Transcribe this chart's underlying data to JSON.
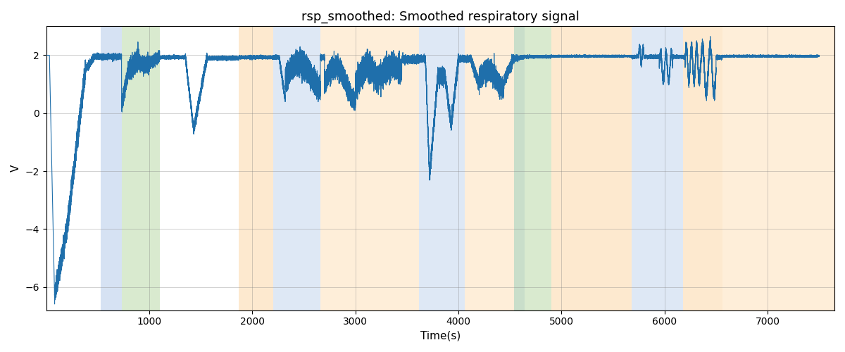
{
  "title": "rsp_smoothed: Smoothed respiratory signal",
  "xlabel": "Time(s)",
  "ylabel": "V",
  "xlim": [
    0,
    7650
  ],
  "ylim": [
    -6.8,
    3.0
  ],
  "yticks": [
    -6,
    -4,
    -2,
    0,
    2
  ],
  "xticks": [
    1000,
    2000,
    3000,
    4000,
    5000,
    6000,
    7000
  ],
  "background_color": "#ffffff",
  "line_color": "#1f6fab",
  "line_width": 0.8,
  "title_fontsize": 13,
  "label_fontsize": 11,
  "bands": [
    {
      "xmin": 530,
      "xmax": 730,
      "color": "#aec6e8",
      "alpha": 0.5
    },
    {
      "xmin": 730,
      "xmax": 1100,
      "color": "#b5d6a0",
      "alpha": 0.5
    },
    {
      "xmin": 1870,
      "xmax": 2200,
      "color": "#fdd5a0",
      "alpha": 0.5
    },
    {
      "xmin": 2200,
      "xmax": 2660,
      "color": "#aec6e8",
      "alpha": 0.4
    },
    {
      "xmin": 2660,
      "xmax": 3620,
      "color": "#fdd5a0",
      "alpha": 0.4
    },
    {
      "xmin": 3620,
      "xmax": 4060,
      "color": "#aec6e8",
      "alpha": 0.4
    },
    {
      "xmin": 4060,
      "xmax": 4540,
      "color": "#fdd5a0",
      "alpha": 0.4
    },
    {
      "xmin": 4540,
      "xmax": 4640,
      "color": "#aec6e8",
      "alpha": 0.4
    },
    {
      "xmin": 4540,
      "xmax": 4900,
      "color": "#b5d6a0",
      "alpha": 0.5
    },
    {
      "xmin": 4900,
      "xmax": 5680,
      "color": "#fdd5a0",
      "alpha": 0.5
    },
    {
      "xmin": 5680,
      "xmax": 6180,
      "color": "#aec6e8",
      "alpha": 0.4
    },
    {
      "xmin": 6180,
      "xmax": 6560,
      "color": "#fdd5a0",
      "alpha": 0.5
    },
    {
      "xmin": 6560,
      "xmax": 7650,
      "color": "#fdd5a0",
      "alpha": 0.4
    }
  ]
}
